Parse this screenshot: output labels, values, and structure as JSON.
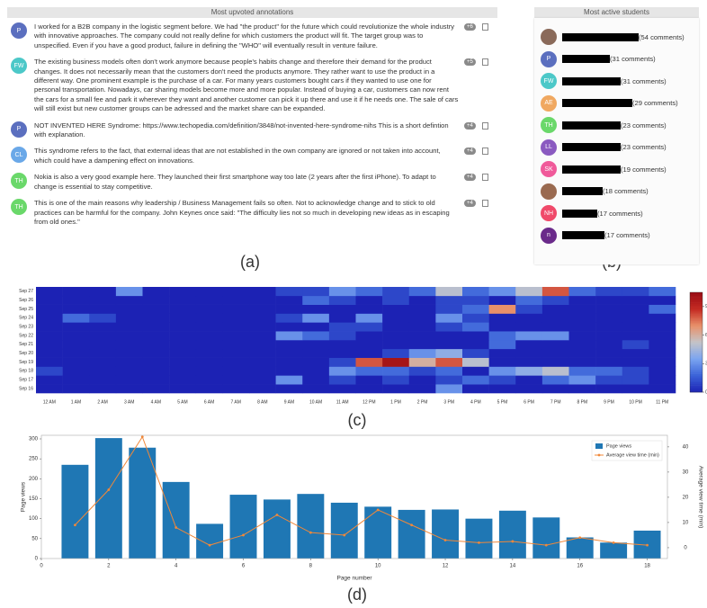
{
  "panel_labels": [
    "(a)",
    "(b)",
    "(c)",
    "(d)"
  ],
  "annotations": {
    "title": "Most upvoted annotations",
    "items": [
      {
        "initials": "P",
        "color": "#5b6fbf",
        "votes": "+6",
        "text": "I worked for a B2B company in the logistic segment before. We had \"the product\" for the future which could revolutionize the whole industry with innovative approaches. The company could not really define for which customers the product will fit. The target group was to unspecified. Even if you have a good product, failure in defining the \"WHO\" will eventually result in venture failure."
      },
      {
        "initials": "FW",
        "color": "#4cc8c8",
        "votes": "+5",
        "text": "The existing business models often don't work anymore because people's habits change and therefore their demand for the product changes. It does not necessarily mean that the customers don't need the products anymore. They rather want to use the product in a different way. One prominent example is the purchase of a car. For many years customers bought cars if they wanted to use one for personal transportation. Nowadays, car sharing models become more and more popular. Instead of buying a car, customers can now rent the cars for a small fee and park it wherever they want and another customer can pick it up there and use it if he needs one. The sale of cars will still exist but new customer groups can be adressed and the market share can be expanded."
      },
      {
        "initials": "P",
        "color": "#5b6fbf",
        "votes": "+4",
        "text": "NOT INVENTED HERE Syndrome: https://www.techopedia.com/definition/3848/not-invented-here-syndrome-nihs This is a short defintion with explanation."
      },
      {
        "initials": "CL",
        "color": "#6aa8e8",
        "votes": "+4",
        "text": "This syndrome refers to the fact, that external ideas that are not established in the own company are ignored or not taken into account, which could have a dampening effect on innovations."
      },
      {
        "initials": "TH",
        "color": "#6ad86a",
        "votes": "+4",
        "text": "Nokia is also a very good example here. They launched their first smartphone way too late (2 years after the first iPhone). To adapt to change is essential to stay competitive."
      },
      {
        "initials": "TH",
        "color": "#6ad86a",
        "votes": "+4",
        "text": "This is one of the main reasons why leadership / Business Management fails so often. Not to acknowledge change and to stick to old practices can be harmful for the company. John Keynes once said: \"The difficulty lies not so much in developing new ideas as in escaping from old ones.\""
      }
    ]
  },
  "students": {
    "title": "Most active students",
    "items": [
      {
        "color": "#8a6a5a",
        "comments": "(54 comments)"
      },
      {
        "initials": "P",
        "color": "#5b6fbf",
        "comments": "(31 comments)"
      },
      {
        "initials": "FW",
        "color": "#4cc8c8",
        "comments": "(31 comments)"
      },
      {
        "initials": "AE",
        "color": "#f0a860",
        "comments": "(29 comments)"
      },
      {
        "initials": "TH",
        "color": "#6ad86a",
        "comments": "(23 comments)"
      },
      {
        "initials": "LL",
        "color": "#8a5ac0",
        "comments": "(23 comments)"
      },
      {
        "initials": "SK",
        "color": "#f05a9a",
        "comments": "(19 comments)"
      },
      {
        "color": "#9a6a50",
        "comments": "(18 comments)"
      },
      {
        "initials": "NH",
        "color": "#f04a6a",
        "comments": "(17 comments)"
      },
      {
        "initials": "n",
        "color": "#6a2a8a",
        "comments": "(17 comments)"
      }
    ]
  },
  "chart_data": [
    {
      "type": "heatmap",
      "x": [
        "12 AM",
        "1 AM",
        "2 AM",
        "3 AM",
        "4 AM",
        "5 AM",
        "6 AM",
        "7 AM",
        "8 AM",
        "9 AM",
        "10 AM",
        "11 AM",
        "12 PM",
        "1 PM",
        "2 PM",
        "3 PM",
        "4 PM",
        "5 PM",
        "6 PM",
        "7 PM",
        "8 PM",
        "9 PM",
        "10 PM",
        "11 PM"
      ],
      "y": [
        "Sep 16",
        "Sep 17",
        "Sep 18",
        "Sep 19",
        "Sep 20",
        "Sep 21",
        "Sep 22",
        "Sep 23",
        "Sep 24",
        "Sep 25",
        "Sep 26",
        "Sep 27"
      ],
      "values": [
        [
          0,
          0,
          0,
          0,
          0,
          0,
          0,
          0,
          0,
          0,
          0,
          0,
          0,
          0,
          0,
          3,
          0,
          0,
          0,
          0,
          0,
          0,
          0,
          0
        ],
        [
          0,
          0,
          0,
          0,
          0,
          0,
          0,
          0,
          0,
          3,
          0,
          1,
          0,
          1,
          0,
          1,
          2,
          1,
          0,
          2,
          3,
          1,
          1,
          0
        ],
        [
          1,
          0,
          0,
          0,
          0,
          0,
          0,
          0,
          0,
          0,
          0,
          3,
          2,
          2,
          1,
          2,
          0,
          3,
          4,
          5,
          2,
          2,
          1,
          0
        ],
        [
          0,
          0,
          0,
          0,
          0,
          0,
          0,
          0,
          0,
          0,
          0,
          1,
          8,
          10,
          6,
          8,
          5,
          0,
          0,
          0,
          0,
          0,
          0,
          0
        ],
        [
          0,
          0,
          0,
          0,
          0,
          0,
          0,
          0,
          0,
          0,
          0,
          0,
          0,
          1,
          3,
          4,
          1,
          0,
          0,
          0,
          0,
          0,
          0,
          0
        ],
        [
          0,
          0,
          0,
          0,
          0,
          0,
          0,
          0,
          0,
          0,
          0,
          0,
          0,
          0,
          0,
          0,
          0,
          2,
          0,
          0,
          0,
          0,
          1,
          0
        ],
        [
          0,
          0,
          0,
          0,
          0,
          0,
          0,
          0,
          0,
          3,
          2,
          1,
          0,
          0,
          0,
          0,
          0,
          2,
          3,
          3,
          0,
          0,
          0,
          0
        ],
        [
          0,
          0,
          0,
          0,
          0,
          0,
          0,
          0,
          0,
          0,
          0,
          1,
          1,
          0,
          0,
          1,
          2,
          0,
          0,
          0,
          0,
          0,
          0,
          0
        ],
        [
          0,
          2,
          1,
          0,
          0,
          0,
          0,
          0,
          0,
          1,
          3,
          0,
          3,
          0,
          0,
          3,
          1,
          0,
          0,
          0,
          0,
          0,
          0,
          0
        ],
        [
          0,
          0,
          0,
          0,
          0,
          0,
          0,
          0,
          0,
          0,
          0,
          0,
          0,
          0,
          0,
          1,
          2,
          7,
          1,
          0,
          0,
          0,
          0,
          2
        ],
        [
          0,
          0,
          0,
          0,
          0,
          0,
          0,
          0,
          0,
          0,
          2,
          1,
          0,
          1,
          0,
          1,
          1,
          0,
          2,
          1,
          0,
          0,
          0,
          0
        ],
        [
          0,
          0,
          0,
          3,
          0,
          0,
          0,
          0,
          0,
          1,
          1,
          3,
          2,
          1,
          2,
          5,
          2,
          3,
          5,
          8,
          2,
          1,
          1,
          2
        ]
      ],
      "zlim": [
        0,
        10.5
      ],
      "zticks": [
        0,
        3,
        6,
        9
      ],
      "colors": [
        "#1c22b4",
        "#3a62d8",
        "#7aa4f0",
        "#c4c4c8",
        "#e8906a",
        "#c42a22",
        "#9a0c14"
      ]
    },
    {
      "type": "bar",
      "x": [
        1,
        2,
        3,
        4,
        5,
        6,
        7,
        8,
        9,
        10,
        11,
        12,
        13,
        14,
        15,
        16,
        17,
        18
      ],
      "series": [
        {
          "name": "Page views",
          "type": "bar",
          "color": "#1f77b4",
          "values": [
            235,
            302,
            278,
            192,
            87,
            160,
            148,
            162,
            140,
            130,
            122,
            123,
            100,
            120,
            103,
            53,
            40,
            70
          ]
        },
        {
          "name": "Average view time (min)",
          "type": "line",
          "axis": "y2",
          "color": "#f0883a",
          "values": [
            9,
            23,
            44,
            8,
            1,
            5,
            13,
            6,
            5,
            15,
            9,
            3,
            2,
            2.5,
            1,
            4,
            2,
            1
          ]
        }
      ],
      "xlabel": "Page number",
      "ylabel": "Page views",
      "y2label": "Average view time (min)",
      "xlim": [
        0,
        18.6
      ],
      "xticks": [
        0,
        2,
        4,
        6,
        8,
        10,
        12,
        14,
        16,
        18
      ],
      "ylim": [
        0,
        309
      ],
      "yticks": [
        0,
        50,
        100,
        150,
        200,
        250,
        300
      ],
      "y2lim": [
        -4.3,
        44.6
      ],
      "y2ticks": [
        0,
        10,
        20,
        30,
        40
      ],
      "legend": "upper right"
    }
  ]
}
